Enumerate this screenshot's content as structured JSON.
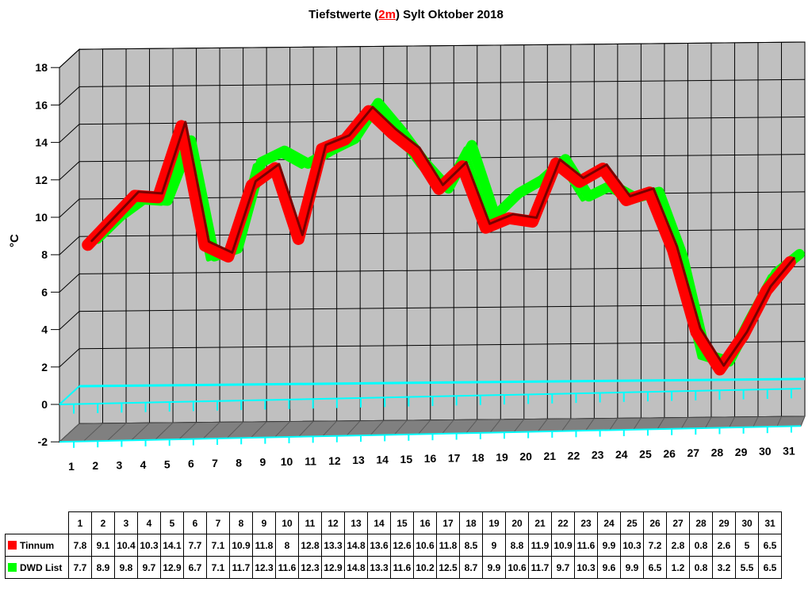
{
  "title_parts": {
    "before": "Tiefstwerte (",
    "highlight": "2m",
    "after": ") Sylt Oktober 2018"
  },
  "chart_data": {
    "type": "line",
    "title": "Tiefstwerte (2m) Sylt Oktober 2018",
    "ylabel": "°C",
    "xlabel": "",
    "ylim": [
      -2,
      18
    ],
    "yticks": [
      -2,
      0,
      2,
      4,
      6,
      8,
      10,
      12,
      14,
      16,
      18
    ],
    "grid": true,
    "categories": [
      "1",
      "2",
      "3",
      "4",
      "5",
      "6",
      "7",
      "8",
      "9",
      "10",
      "11",
      "12",
      "13",
      "14",
      "15",
      "16",
      "17",
      "18",
      "19",
      "20",
      "21",
      "22",
      "23",
      "24",
      "25",
      "26",
      "27",
      "28",
      "29",
      "30",
      "31"
    ],
    "series": [
      {
        "name": "Tinnum",
        "color": "#ff0000",
        "values": [
          7.8,
          9.1,
          10.4,
          10.3,
          14.1,
          7.7,
          7.1,
          10.9,
          11.8,
          8,
          12.8,
          13.3,
          14.8,
          13.6,
          12.6,
          10.6,
          11.8,
          8.5,
          9,
          8.8,
          11.9,
          10.9,
          11.6,
          9.9,
          10.3,
          7.2,
          2.8,
          0.8,
          2.6,
          5,
          6.5
        ]
      },
      {
        "name": "DWD List",
        "color": "#00ff00",
        "values": [
          7.7,
          8.9,
          9.8,
          9.7,
          12.9,
          6.7,
          7.1,
          11.7,
          12.3,
          11.6,
          12.3,
          12.9,
          14.8,
          13.3,
          11.6,
          10.2,
          12.5,
          8.7,
          9.9,
          10.6,
          11.7,
          9.7,
          10.3,
          9.6,
          9.9,
          6.5,
          1.2,
          0.8,
          3.2,
          5.5,
          6.5
        ]
      }
    ]
  },
  "colors": {
    "plot_bg": "#c0c0c0",
    "floor": "#808080",
    "baseline": "#00ffff",
    "grid": "#000000"
  }
}
